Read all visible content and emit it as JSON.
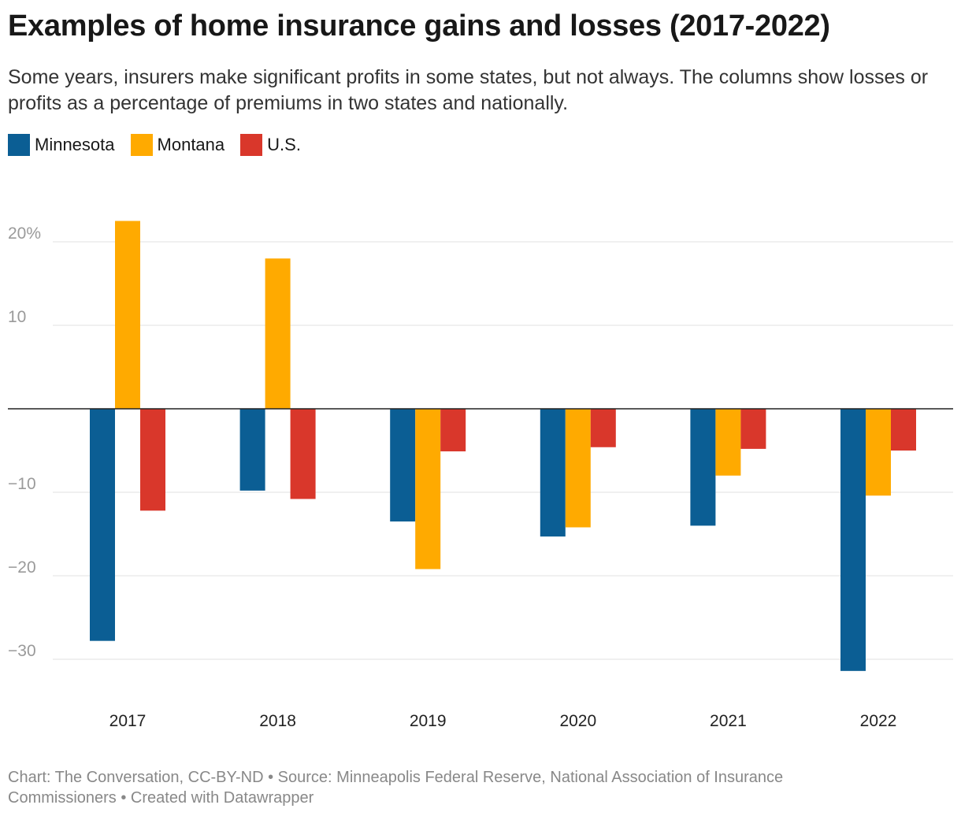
{
  "title": "Examples of home insurance gains and losses (2017-2022)",
  "subtitle": "Some years, insurers make significant profits in some states, but not always. The columns show losses or profits as a percentage of premiums in two states and nationally.",
  "footer": "Chart: The Conversation, CC-BY-ND • Source: Minneapolis Federal Reserve, National Association of Insurance Commissioners • Created with Datawrapper",
  "chart_data": {
    "type": "bar",
    "categories": [
      "2017",
      "2018",
      "2019",
      "2020",
      "2021",
      "2022"
    ],
    "series": [
      {
        "name": "Minnesota",
        "color": "#0b5e94",
        "values": [
          -27.8,
          -9.8,
          -13.5,
          -15.3,
          -14.0,
          -31.4
        ]
      },
      {
        "name": "Montana",
        "color": "#ffaa00",
        "values": [
          22.5,
          18.0,
          -19.2,
          -14.2,
          -8.0,
          -10.4
        ]
      },
      {
        "name": "U.S.",
        "color": "#d9372b",
        "values": [
          -12.2,
          -10.8,
          -5.1,
          -4.6,
          -4.8,
          -5.0
        ]
      }
    ],
    "yticks": [
      20,
      10,
      -10,
      -20,
      -30
    ],
    "ytick_labels": [
      "20%",
      "10",
      "−10",
      "−20",
      "−30"
    ],
    "ylim": [
      -34,
      26
    ],
    "grid": true,
    "legend": "top-left"
  }
}
